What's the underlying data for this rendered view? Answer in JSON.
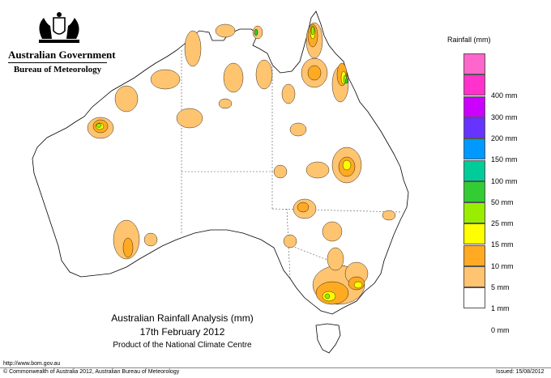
{
  "logo": {
    "government": "Australian Government",
    "bureau": "Bureau of Meteorology"
  },
  "legend": {
    "title": "Rainfall (mm)",
    "items": [
      {
        "label": "",
        "color": "#ff66cc"
      },
      {
        "label": "400 mm",
        "color": "#ff33cc"
      },
      {
        "label": "300 mm",
        "color": "#cc00ff"
      },
      {
        "label": "200 mm",
        "color": "#6633ff"
      },
      {
        "label": "150 mm",
        "color": "#0099ff"
      },
      {
        "label": "100 mm",
        "color": "#00cc99"
      },
      {
        "label": "50 mm",
        "color": "#33cc33"
      },
      {
        "label": "25 mm",
        "color": "#99ee00"
      },
      {
        "label": "15 mm",
        "color": "#ffff00"
      },
      {
        "label": "10 mm",
        "color": "#ffaa22"
      },
      {
        "label": "5 mm",
        "color": "#ffc470"
      },
      {
        "label": "1 mm",
        "color": "#ffffff"
      },
      {
        "label": "0 mm",
        "color": ""
      }
    ]
  },
  "caption": {
    "title": "Australian Rainfall Analysis (mm)",
    "date": "17th February 2012",
    "product": "Product of the National Climate Centre"
  },
  "footer": {
    "url": "http://www.bom.gov.au",
    "copyright": "© Commonwealth of Australia 2012, Australian Bureau of Meteorology",
    "issued": "Issued: 15/08/2012"
  },
  "colors": {
    "rain_1mm": "#ffc470",
    "rain_5mm": "#ffaa22",
    "rain_10mm": "#ffff00",
    "rain_15mm": "#99ee00",
    "rain_25mm": "#33cc33",
    "outline": "#000000"
  }
}
